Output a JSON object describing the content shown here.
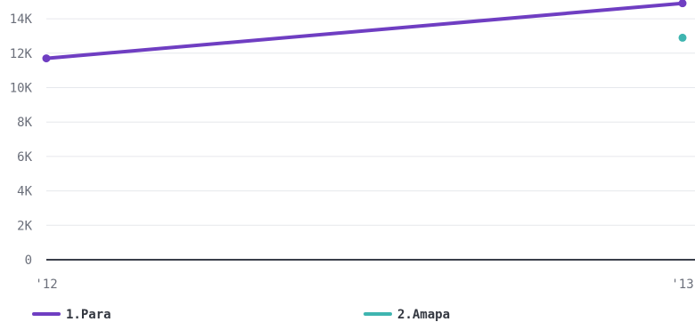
{
  "chart_data": {
    "type": "line",
    "title": "",
    "xlabel": "",
    "ylabel": "",
    "categories": [
      "'12",
      "'13"
    ],
    "ylim": [
      0,
      14000
    ],
    "y_ticks": [
      {
        "value": 0,
        "label": "0"
      },
      {
        "value": 2000,
        "label": "2K"
      },
      {
        "value": 4000,
        "label": "4K"
      },
      {
        "value": 6000,
        "label": "6K"
      },
      {
        "value": 8000,
        "label": "8K"
      },
      {
        "value": 10000,
        "label": "10K"
      },
      {
        "value": 12000,
        "label": "12K"
      },
      {
        "value": 14000,
        "label": "14K"
      }
    ],
    "grid": true,
    "legend_position": "bottom",
    "series": [
      {
        "name": "1.Para",
        "color": "#6f3ec2",
        "values": [
          11700,
          14900
        ]
      },
      {
        "name": "2.Amapa",
        "color": "#3fb5b0",
        "values": [
          null,
          12900
        ]
      }
    ]
  }
}
